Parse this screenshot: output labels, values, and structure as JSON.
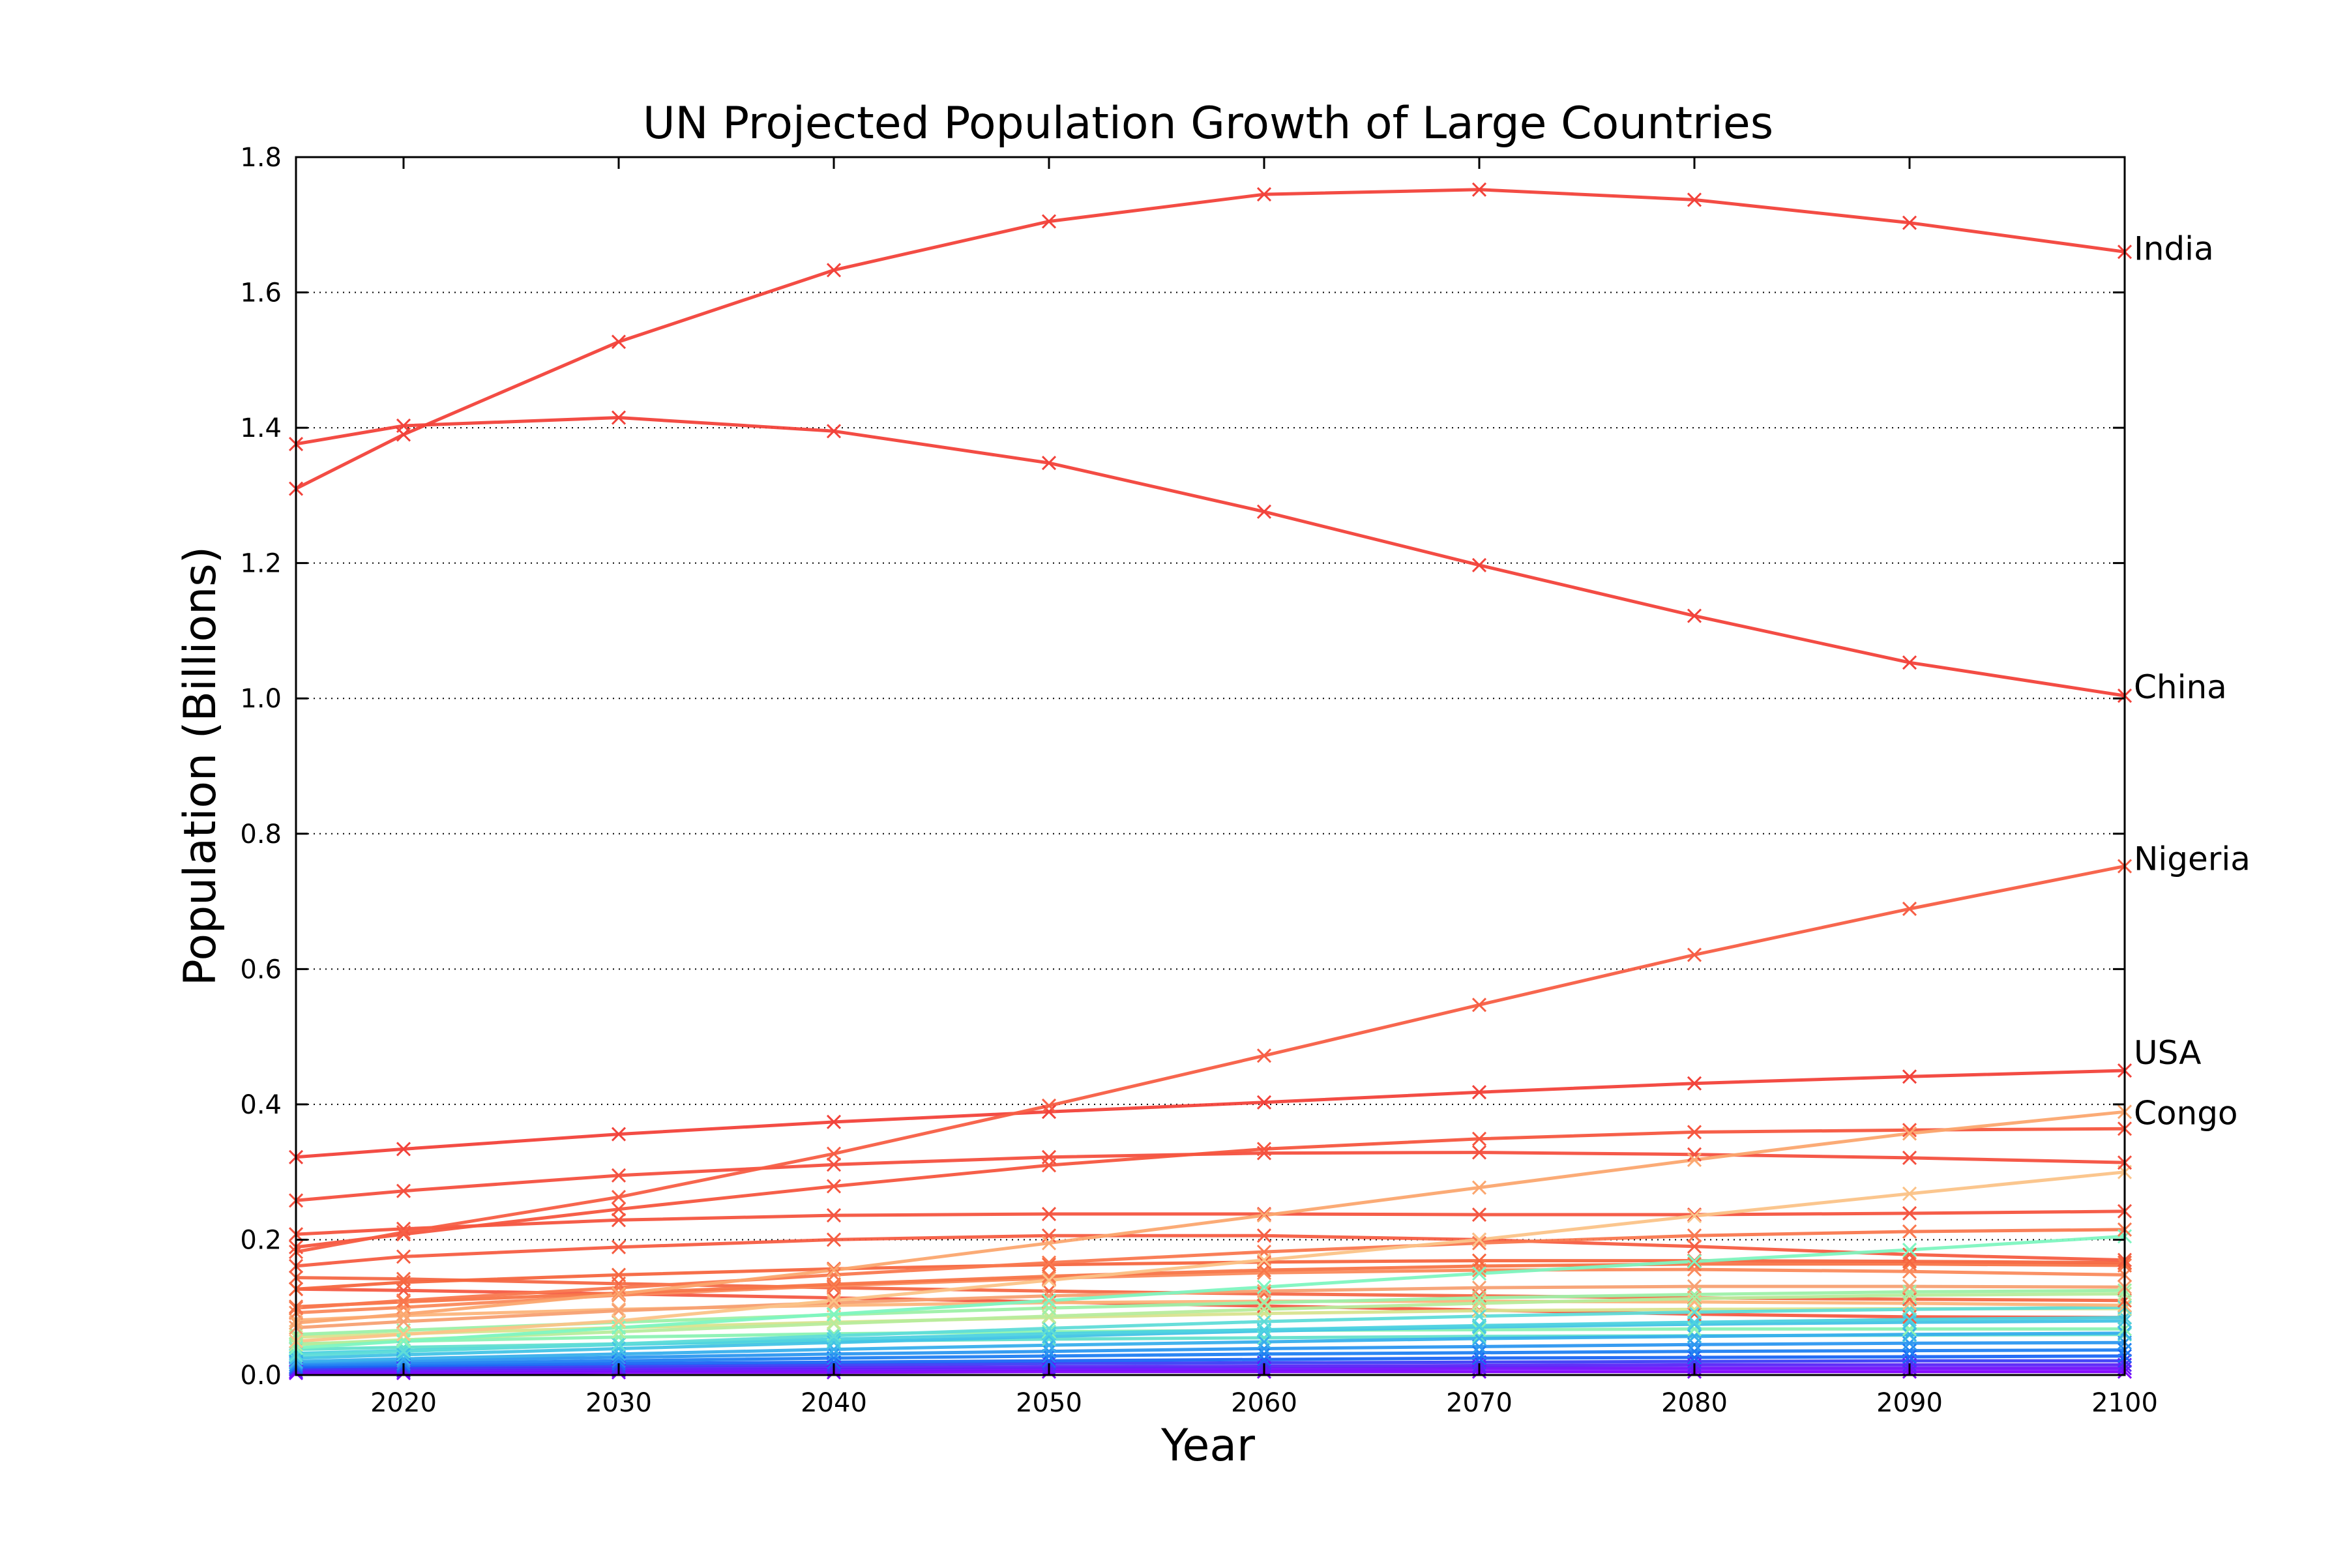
{
  "chart_data": {
    "type": "line",
    "title": "UN Projected Population Growth of Large Countries",
    "xlabel": "Year",
    "ylabel": "Population (Billions)",
    "xlim": [
      2015,
      2100
    ],
    "ylim": [
      0.0,
      1.8
    ],
    "x_ticks": [
      "2020",
      "2030",
      "2040",
      "2050",
      "2060",
      "2070",
      "2080",
      "2090",
      "2100"
    ],
    "y_ticks": [
      "0.0",
      "0.2",
      "0.4",
      "0.6",
      "0.8",
      "1.0",
      "1.2",
      "1.4",
      "1.6",
      "1.8"
    ],
    "grid": "horizontal dotted",
    "legend": "none",
    "marker": "x",
    "colormap": "rainbow (red = largest population in 2100, violet = smallest)",
    "x": [
      2015,
      2020,
      2030,
      2040,
      2050,
      2060,
      2070,
      2080,
      2090,
      2100
    ],
    "annotations": [
      {
        "text": "India",
        "x": 2100,
        "y": 1.66
      },
      {
        "text": "China",
        "x": 2100,
        "y": 1.0
      },
      {
        "text": "Nigeria",
        "x": 2100,
        "y": 0.75
      },
      {
        "text": "USA",
        "x": 2100,
        "y": 0.45
      },
      {
        "text": "Congo",
        "x": 2100,
        "y": 0.39
      }
    ],
    "series": [
      {
        "name": "India",
        "color": "#f2423a",
        "values": [
          1.31,
          1.39,
          1.527,
          1.633,
          1.705,
          1.745,
          1.752,
          1.737,
          1.703,
          1.66
        ]
      },
      {
        "name": "China",
        "color": "#f2423a",
        "values": [
          1.376,
          1.403,
          1.415,
          1.395,
          1.348,
          1.276,
          1.197,
          1.122,
          1.053,
          1.004
        ]
      },
      {
        "name": "Nigeria",
        "color": "#f75e44",
        "values": [
          0.182,
          0.211,
          0.263,
          0.327,
          0.398,
          0.472,
          0.547,
          0.621,
          0.689,
          0.752
        ]
      },
      {
        "name": "USA",
        "color": "#f2423a",
        "values": [
          0.322,
          0.334,
          0.356,
          0.374,
          0.389,
          0.403,
          0.418,
          0.431,
          0.441,
          0.45
        ]
      },
      {
        "name": "Congo",
        "color": "#fba76f",
        "values": [
          0.077,
          0.09,
          0.12,
          0.155,
          0.195,
          0.236,
          0.277,
          0.318,
          0.357,
          0.389
        ]
      },
      {
        "color": "#f4503f",
        "values": [
          0.258,
          0.272,
          0.295,
          0.311,
          0.322,
          0.328,
          0.329,
          0.326,
          0.321,
          0.314
        ]
      },
      {
        "color": "#f6563f",
        "values": [
          0.189,
          0.208,
          0.245,
          0.279,
          0.31,
          0.334,
          0.349,
          0.359,
          0.362,
          0.364
        ]
      },
      {
        "color": "#f4543f",
        "values": [
          0.208,
          0.216,
          0.229,
          0.236,
          0.238,
          0.238,
          0.237,
          0.237,
          0.239,
          0.242
        ]
      },
      {
        "color": "#fbc388",
        "values": [
          0.05,
          0.06,
          0.08,
          0.11,
          0.14,
          0.17,
          0.2,
          0.235,
          0.268,
          0.3
        ]
      },
      {
        "color": "#f9784f",
        "values": [
          0.099,
          0.11,
          0.129,
          0.148,
          0.166,
          0.182,
          0.195,
          0.206,
          0.212,
          0.215
        ]
      },
      {
        "color": "#7ef5c0",
        "values": [
          0.04,
          0.05,
          0.07,
          0.09,
          0.11,
          0.13,
          0.15,
          0.168,
          0.185,
          0.205
        ]
      },
      {
        "color": "#f55d42",
        "values": [
          0.161,
          0.175,
          0.189,
          0.2,
          0.206,
          0.206,
          0.2,
          0.19,
          0.178,
          0.17
        ]
      },
      {
        "color": "#f6663f",
        "values": [
          0.127,
          0.137,
          0.148,
          0.157,
          0.163,
          0.167,
          0.169,
          0.169,
          0.168,
          0.166
        ]
      },
      {
        "color": "#f87548",
        "values": [
          0.101,
          0.108,
          0.121,
          0.134,
          0.146,
          0.155,
          0.161,
          0.164,
          0.164,
          0.162
        ]
      },
      {
        "color": "#fa8a5c",
        "values": [
          0.092,
          0.1,
          0.118,
          0.132,
          0.143,
          0.151,
          0.155,
          0.156,
          0.153,
          0.148
        ]
      },
      {
        "color": "#f46846",
        "values": [
          0.144,
          0.142,
          0.135,
          0.129,
          0.124,
          0.12,
          0.117,
          0.114,
          0.112,
          0.11
        ]
      },
      {
        "color": "#f45a43",
        "values": [
          0.127,
          0.125,
          0.12,
          0.114,
          0.108,
          0.102,
          0.096,
          0.09,
          0.086,
          0.085
        ]
      },
      {
        "color": "#f7a072",
        "values": [
          0.07,
          0.079,
          0.095,
          0.107,
          0.117,
          0.124,
          0.129,
          0.131,
          0.131,
          0.13
        ]
      },
      {
        "color": "#9df0a8",
        "values": [
          0.06,
          0.066,
          0.078,
          0.089,
          0.099,
          0.107,
          0.114,
          0.119,
          0.123,
          0.125
        ]
      },
      {
        "color": "#b7ec9c",
        "values": [
          0.045,
          0.052,
          0.064,
          0.076,
          0.087,
          0.097,
          0.106,
          0.113,
          0.118,
          0.12
        ]
      },
      {
        "color": "#fcb57c",
        "values": [
          0.081,
          0.088,
          0.097,
          0.103,
          0.107,
          0.109,
          0.109,
          0.108,
          0.106,
          0.103
        ]
      },
      {
        "color": "#d8e38e",
        "values": [
          0.056,
          0.061,
          0.07,
          0.078,
          0.085,
          0.091,
          0.095,
          0.097,
          0.098,
          0.098
        ]
      },
      {
        "color": "#5fdcd8",
        "values": [
          0.029,
          0.035,
          0.046,
          0.058,
          0.069,
          0.079,
          0.087,
          0.093,
          0.097,
          0.1
        ]
      },
      {
        "color": "#4ed2e0",
        "values": [
          0.032,
          0.036,
          0.045,
          0.053,
          0.061,
          0.067,
          0.073,
          0.078,
          0.082,
          0.085
        ]
      },
      {
        "color": "#43c3e6",
        "values": [
          0.025,
          0.03,
          0.039,
          0.048,
          0.057,
          0.065,
          0.071,
          0.075,
          0.078,
          0.08
        ]
      },
      {
        "color": "#8bf2b3",
        "values": [
          0.046,
          0.05,
          0.056,
          0.061,
          0.064,
          0.066,
          0.067,
          0.068,
          0.068,
          0.068
        ]
      },
      {
        "color": "#63e0cc",
        "values": [
          0.038,
          0.041,
          0.046,
          0.05,
          0.053,
          0.055,
          0.057,
          0.058,
          0.059,
          0.06
        ]
      },
      {
        "color": "#38afec",
        "values": [
          0.02,
          0.024,
          0.031,
          0.038,
          0.044,
          0.049,
          0.054,
          0.057,
          0.06,
          0.062
        ]
      },
      {
        "color": "#2c97f0",
        "values": [
          0.018,
          0.021,
          0.026,
          0.031,
          0.035,
          0.039,
          0.042,
          0.045,
          0.047,
          0.048
        ]
      },
      {
        "color": "#2080f2",
        "values": [
          0.015,
          0.017,
          0.021,
          0.025,
          0.028,
          0.031,
          0.033,
          0.035,
          0.036,
          0.037
        ]
      },
      {
        "color": "#1a66f4",
        "values": [
          0.012,
          0.014,
          0.017,
          0.019,
          0.021,
          0.023,
          0.025,
          0.026,
          0.027,
          0.028
        ]
      },
      {
        "color": "#3d3df6",
        "values": [
          0.01,
          0.011,
          0.013,
          0.015,
          0.017,
          0.018,
          0.019,
          0.02,
          0.021,
          0.021
        ]
      },
      {
        "color": "#5a24f8",
        "values": [
          0.008,
          0.009,
          0.01,
          0.011,
          0.012,
          0.013,
          0.014,
          0.015,
          0.015,
          0.015
        ]
      },
      {
        "color": "#7010fa",
        "values": [
          0.005,
          0.006,
          0.007,
          0.008,
          0.009,
          0.009,
          0.01,
          0.01,
          0.01,
          0.01
        ]
      },
      {
        "color": "#8000ff",
        "values": [
          0.003,
          0.003,
          0.004,
          0.004,
          0.005,
          0.005,
          0.005,
          0.005,
          0.005,
          0.005
        ]
      }
    ]
  }
}
